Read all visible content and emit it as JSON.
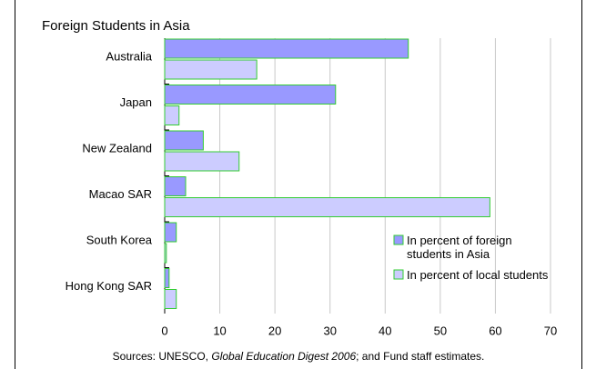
{
  "chart_data": {
    "type": "hbar",
    "title": "Foreign Students in Asia",
    "categories": [
      "Australia",
      "Japan",
      "New Zealand",
      "Macao SAR",
      "South Korea",
      "Hong Kong SAR"
    ],
    "series": [
      {
        "name": "In percent of foreign students in Asia",
        "color": "#9999ff",
        "values": [
          44.2,
          31,
          7,
          3.8,
          2.1,
          0.8
        ]
      },
      {
        "name": "In percent of local students",
        "color": "#ccccff",
        "values": [
          16.7,
          2.6,
          13.5,
          59,
          0.3,
          2.1
        ]
      }
    ],
    "xlim": [
      0,
      70
    ],
    "xticks": [
      0,
      10,
      20,
      30,
      40,
      50,
      60,
      70
    ],
    "grid": true,
    "legend": "lower right",
    "source": {
      "prefix": "Sources: UNESCO, ",
      "italic": "Global Education Digest 2006",
      "suffix": "; and Fund staff estimates."
    }
  }
}
